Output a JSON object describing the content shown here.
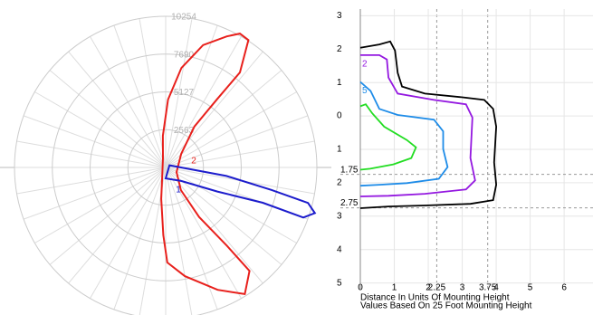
{
  "chart_data": [
    {
      "type": "polar",
      "rlim": [
        0,
        10254
      ],
      "rticks": [
        2563,
        5127,
        7690,
        10254
      ],
      "series": [
        {
          "name": "2",
          "color": "#e8201c",
          "angles": [
            -8,
            -2,
            1,
            10,
            23,
            32,
            39,
            38,
            34,
            34,
            67,
            131,
            145,
            143,
            142,
            147,
            151,
            155,
            163,
            171,
            178,
            185,
            197
          ],
          "values": [
            2150,
            4600,
            6450,
            7490,
            9020,
            10130,
            9030,
            6750,
            4050,
            1850,
            800,
            1390,
            3390,
            5790,
            8180,
            10300,
            10380,
            9810,
            8680,
            6840,
            4610,
            2160,
            640
          ]
        },
        {
          "name": "1",
          "color": "#1c1ccc",
          "angles": [
            120,
            90,
            82,
            78,
            76,
            73,
            70,
            70,
            65,
            49,
            0
          ],
          "values": [
            300,
            1040,
            4160,
            7350,
            9950,
            10580,
            9930,
            7010,
            3870,
            1390,
            740
          ]
        }
      ]
    },
    {
      "type": "contour",
      "xlabel": "Distance In Units Of Mounting Height",
      "note": "Values Based On 25 Foot Mounting Height",
      "xlim": [
        0,
        6.85
      ],
      "ylim": [
        -3.2,
        5.2
      ],
      "xticks": [
        0,
        1,
        2,
        2.25,
        3,
        3.75,
        4,
        5,
        6
      ],
      "yticks": [
        {
          "value": -3,
          "label": "3"
        },
        {
          "value": -2,
          "label": "2"
        },
        {
          "value": -1,
          "label": "1"
        },
        0,
        1,
        1.75,
        2,
        2.75,
        3,
        4,
        5
      ],
      "series": [
        {
          "color": "#000000",
          "x": [
            0,
            0.56,
            0.88,
            1.02,
            1.1,
            1.23,
            1.9,
            2.98,
            3.65,
            3.91,
            4,
            3.94,
            4,
            3.91,
            3.24,
            1.9,
            0.83,
            0
          ],
          "values": [
            -2.04,
            -2.14,
            -2.23,
            -1.96,
            -1.29,
            -0.88,
            -0.67,
            -0.56,
            -0.48,
            -0.21,
            0.32,
            1.39,
            2.06,
            2.52,
            2.63,
            2.68,
            2.71,
            2.76
          ]
        },
        {
          "name": "2",
          "color": "#9418e0",
          "x": [
            0,
            0.56,
            0.78,
            0.83,
            1.1,
            2.17,
            3.11,
            3.3,
            3.24,
            3.38,
            3.11,
            1.9,
            0.83,
            0
          ],
          "values": [
            -1.82,
            -1.82,
            -1.69,
            -1.15,
            -0.67,
            -0.48,
            -0.35,
            0.05,
            1.26,
            1.93,
            2.2,
            2.33,
            2.39,
            2.41
          ]
        },
        {
          "name": "5",
          "color": "#1e8ce8",
          "x": [
            0,
            0.3,
            0.56,
            1.1,
            2.17,
            2.44,
            2.44,
            2.57,
            2.31,
            1.37,
            0.56,
            0
          ],
          "values": [
            -1.02,
            -0.75,
            -0.21,
            -0.03,
            0.11,
            0.46,
            0.99,
            1.53,
            1.88,
            2.01,
            2.06,
            2.09
          ]
        },
        {
          "color": "#22dd22",
          "x": [
            0,
            0.16,
            0.35,
            0.7,
            1.37,
            1.64,
            1.5,
            0.97,
            0.29,
            0
          ],
          "values": [
            -0.29,
            -0.35,
            -0.08,
            0.32,
            0.72,
            0.94,
            1.26,
            1.45,
            1.58,
            1.61
          ]
        }
      ]
    }
  ]
}
